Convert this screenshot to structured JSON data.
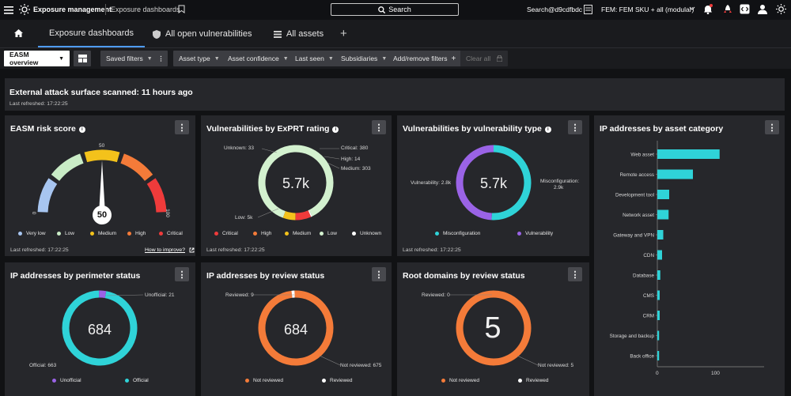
{
  "topbar": {
    "app_name": "Exposure management",
    "section": "Exposure dashboards",
    "search_label": "Search",
    "account": "Search@d9cdfbdc",
    "sku": "FEM: FEM SKU + all (modular)"
  },
  "tabs": [
    {
      "label": "Exposure dashboards"
    },
    {
      "label": "All open vulnerabilities"
    },
    {
      "label": "All assets"
    }
  ],
  "filters": {
    "view": "EASM overview",
    "saved": "Saved filters",
    "items": [
      "Asset type",
      "Asset confidence",
      "Last seen",
      "Subsidiaries"
    ],
    "add_remove": "Add/remove filters",
    "clear": "Clear all"
  },
  "banner": {
    "title": "External attack surface scanned: 11 hours ago",
    "refreshed": "Last refreshed: 17:22:25"
  },
  "risk": {
    "title": "EASM risk score",
    "score": "50",
    "score_value": 50,
    "min": "0",
    "mid": "50",
    "max": "100",
    "legend": [
      {
        "label": "Very low",
        "color": "#a7c5f0"
      },
      {
        "label": "Low",
        "color": "#c9ecc6"
      },
      {
        "label": "Medium",
        "color": "#f3c21b"
      },
      {
        "label": "High",
        "color": "#f47b39"
      },
      {
        "label": "Critical",
        "color": "#ef3b3b"
      }
    ],
    "refreshed": "Last refreshed: 17:22:25",
    "improve": "How to improve?"
  },
  "exprt": {
    "title": "Vulnerabilities by ExPRT rating",
    "center": "5.7k",
    "labels": {
      "unknown": "Unknown: 33",
      "critical": "Critical: 380",
      "high": "High: 14",
      "medium": "Medium: 303",
      "low": "Low: 5k"
    },
    "segments": [
      {
        "name": "Low",
        "value": 5000,
        "color": "#d3f1cf"
      },
      {
        "name": "Unknown",
        "value": 33,
        "color": "#ffffff"
      },
      {
        "name": "Critical",
        "value": 380,
        "color": "#ef3b3b"
      },
      {
        "name": "High",
        "value": 14,
        "color": "#f47b39"
      },
      {
        "name": "Medium",
        "value": 303,
        "color": "#f3c21b"
      }
    ],
    "legend": [
      {
        "label": "Critical",
        "color": "#ef3b3b"
      },
      {
        "label": "High",
        "color": "#f47b39"
      },
      {
        "label": "Medium",
        "color": "#f3c21b"
      },
      {
        "label": "Low",
        "color": "#d3f1cf"
      },
      {
        "label": "Unknown",
        "color": "#ffffff"
      }
    ],
    "refreshed": "Last refreshed: 17:22:25"
  },
  "vtype": {
    "title": "Vulnerabilities by vulnerability type",
    "center": "5.7k",
    "label_vuln": "Vulnerability: 2.8k",
    "label_misconf": "Misconfiguration:",
    "label_misconf_val": "2.9k",
    "segments": [
      {
        "name": "Misconfiguration",
        "value": 2900,
        "color": "#2fd3d8"
      },
      {
        "name": "Vulnerability",
        "value": 2800,
        "color": "#9a63e6"
      }
    ],
    "legend": [
      {
        "label": "Misconfiguration",
        "color": "#2fd3d8"
      },
      {
        "label": "Vulnerability",
        "color": "#9a63e6"
      }
    ],
    "refreshed": "Last refreshed: 17:22:25"
  },
  "ipcat": {
    "title": "IP addresses by asset category",
    "axis_min": "0",
    "axis_max": "100",
    "chart_data": {
      "type": "bar",
      "categories": [
        "Web asset",
        "Remote access",
        "Development tool",
        "Network asset",
        "Gateway and VPN",
        "CDN",
        "Database",
        "CMS",
        "CRM",
        "Storage and backup",
        "Back office"
      ],
      "values": [
        105,
        60,
        20,
        19,
        10,
        8,
        5,
        4,
        4,
        3,
        3
      ],
      "xlim": [
        0,
        100
      ],
      "color": "#2fd3d8"
    }
  },
  "perimeter": {
    "title": "IP addresses by perimeter status",
    "center": "684",
    "label_unofficial": "Unofficial: 21",
    "label_official": "Official: 663",
    "segments": [
      {
        "name": "Official",
        "value": 663,
        "color": "#2fd3d8"
      },
      {
        "name": "Unofficial",
        "value": 21,
        "color": "#9a63e6"
      }
    ],
    "legend": [
      {
        "label": "Unofficial",
        "color": "#9a63e6"
      },
      {
        "label": "Official",
        "color": "#2fd3d8"
      }
    ]
  },
  "review": {
    "title": "IP addresses by review status",
    "center": "684",
    "label_reviewed": "Reviewed: 9",
    "label_not": "Not reviewed: 675",
    "segments": [
      {
        "name": "Not reviewed",
        "value": 675,
        "color": "#f47b39"
      },
      {
        "name": "Reviewed",
        "value": 9,
        "color": "#ffffff"
      }
    ],
    "legend": [
      {
        "label": "Not reviewed",
        "color": "#f47b39"
      },
      {
        "label": "Reviewed",
        "color": "#ffffff"
      }
    ]
  },
  "rootdomains": {
    "title": "Root domains by review status",
    "center": "5",
    "label_reviewed": "Reviewed: 0",
    "label_not": "Not reviewed: 5",
    "segments": [
      {
        "name": "Not reviewed",
        "value": 5,
        "color": "#f47b39"
      }
    ],
    "legend": [
      {
        "label": "Not reviewed",
        "color": "#f47b39"
      },
      {
        "label": "Reviewed",
        "color": "#ffffff"
      }
    ]
  }
}
